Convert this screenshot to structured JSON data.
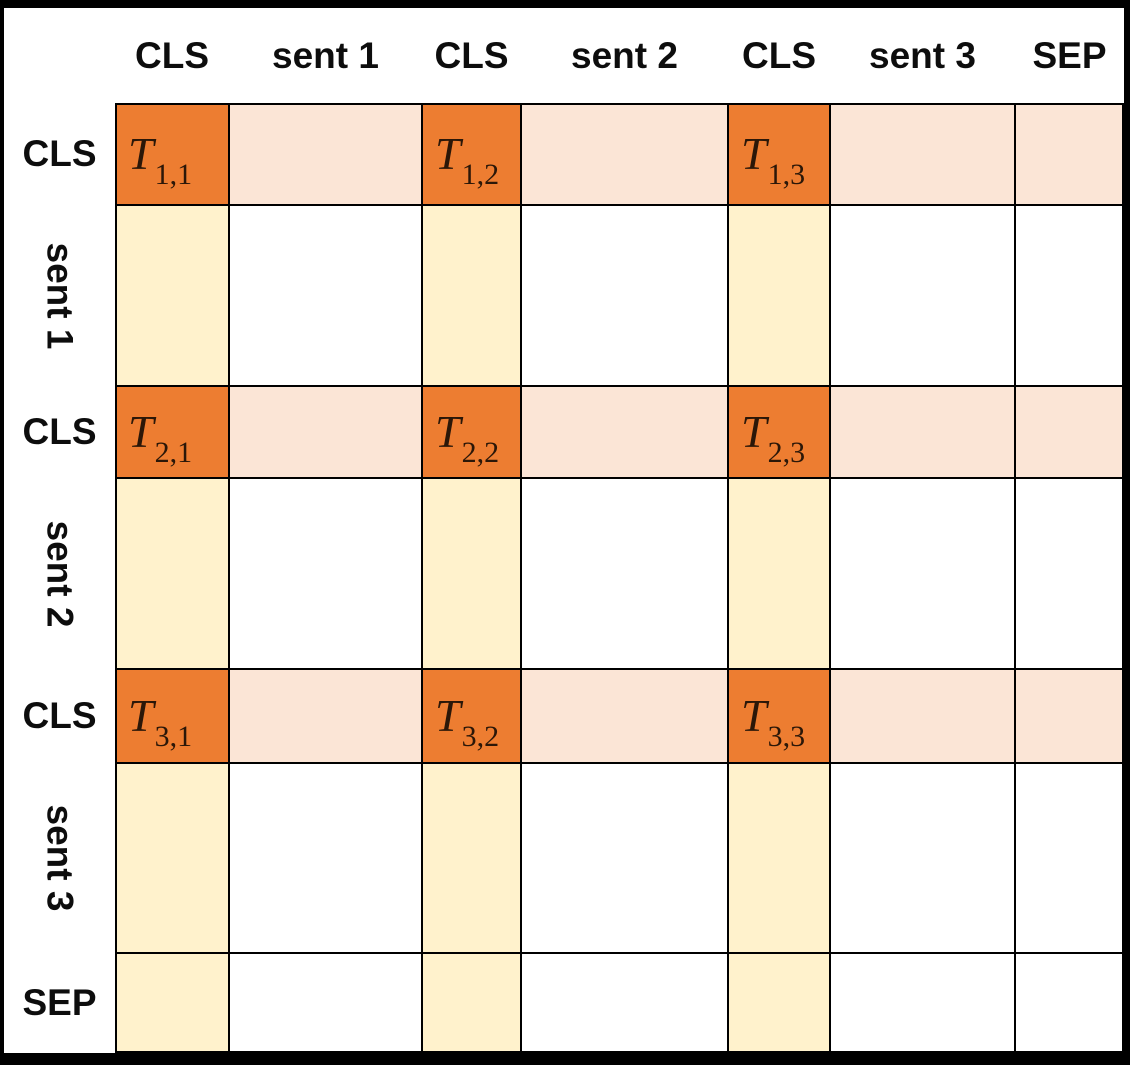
{
  "diagram": {
    "column_headers": [
      "CLS",
      "sent 1",
      "CLS",
      "sent 2",
      "CLS",
      "sent 3",
      "SEP"
    ],
    "row_headers": [
      "CLS",
      "sent 1",
      "CLS",
      "sent 2",
      "CLS",
      "sent 3",
      "SEP"
    ],
    "row_kinds": [
      "cls",
      "sent",
      "cls",
      "sent",
      "cls",
      "sent",
      "sep"
    ],
    "col_kinds": [
      "cls",
      "sent",
      "cls",
      "sent",
      "cls",
      "sent",
      "sep"
    ],
    "t_labels": [
      {
        "row": 0,
        "col": 0,
        "base": "T",
        "sub": "1,1"
      },
      {
        "row": 0,
        "col": 2,
        "base": "T",
        "sub": "1,2"
      },
      {
        "row": 0,
        "col": 4,
        "base": "T",
        "sub": "1,3"
      },
      {
        "row": 2,
        "col": 0,
        "base": "T",
        "sub": "2,1"
      },
      {
        "row": 2,
        "col": 2,
        "base": "T",
        "sub": "2,2"
      },
      {
        "row": 2,
        "col": 4,
        "base": "T",
        "sub": "2,3"
      },
      {
        "row": 4,
        "col": 0,
        "base": "T",
        "sub": "3,1"
      },
      {
        "row": 4,
        "col": 2,
        "base": "T",
        "sub": "3,2"
      },
      {
        "row": 4,
        "col": 4,
        "base": "T",
        "sub": "3,3"
      }
    ],
    "colors": {
      "cls_cls_cell": "#ED7D31",
      "cls_row_band": "#FBE5D6",
      "cls_col_band": "#FFF2CC",
      "default_cell": "#FFFFFF",
      "grid_line": "#000000",
      "header_text": "#0d0d0d",
      "t_label_text": "#2b1708"
    }
  }
}
